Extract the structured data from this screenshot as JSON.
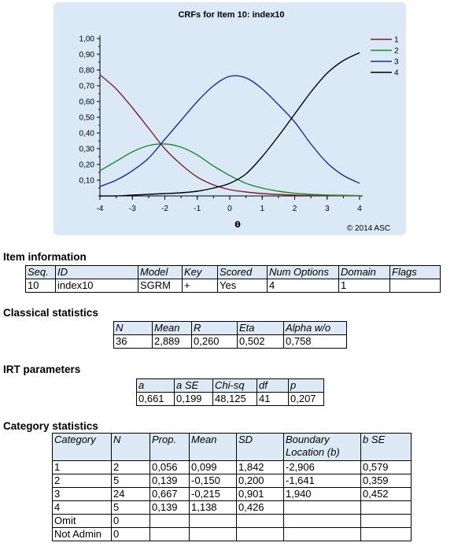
{
  "chart": {
    "copyright": "© 2014 ASC",
    "colors": {
      "1": "#7a1f2a",
      "2": "#1a8c2a",
      "3": "#1c2a9c",
      "4": "#000000"
    }
  },
  "chart_data": {
    "type": "line",
    "title": "CRFs for Item 10: index10",
    "xlabel": "θ",
    "ylabel": "",
    "xlim": [
      -4,
      4
    ],
    "ylim": [
      0,
      1
    ],
    "x_ticks": [
      "-4",
      "-3",
      "-2",
      "-1",
      "0",
      "1",
      "2",
      "3",
      "4"
    ],
    "y_ticks": [
      "0,10",
      "0,20",
      "0,30",
      "0,40",
      "0,50",
      "0,60",
      "0,70",
      "0,80",
      "0,90",
      "1,00"
    ],
    "x": [
      -4,
      -3.5,
      -3,
      -2.5,
      -2,
      -1.5,
      -1,
      -0.5,
      0,
      0.5,
      1,
      1.5,
      2,
      2.5,
      3,
      3.5,
      4
    ],
    "series": [
      {
        "name": "1",
        "values": [
          0.77,
          0.68,
          0.56,
          0.43,
          0.3,
          0.2,
          0.12,
          0.07,
          0.04,
          0.025,
          0.015,
          0.009,
          0.005,
          0.003,
          0.002,
          0.001,
          0.001
        ]
      },
      {
        "name": "2",
        "values": [
          0.16,
          0.22,
          0.28,
          0.32,
          0.33,
          0.31,
          0.26,
          0.19,
          0.13,
          0.08,
          0.05,
          0.03,
          0.017,
          0.01,
          0.006,
          0.004,
          0.002
        ]
      },
      {
        "name": "3",
        "values": [
          0.06,
          0.1,
          0.16,
          0.24,
          0.36,
          0.48,
          0.6,
          0.7,
          0.76,
          0.75,
          0.68,
          0.58,
          0.47,
          0.33,
          0.21,
          0.13,
          0.08
        ]
      },
      {
        "name": "4",
        "values": [
          0.0,
          0.0,
          0.005,
          0.01,
          0.015,
          0.02,
          0.03,
          0.05,
          0.08,
          0.14,
          0.25,
          0.38,
          0.52,
          0.66,
          0.78,
          0.86,
          0.91
        ]
      }
    ],
    "legend": "top-right",
    "grid": false
  },
  "sections": {
    "item_info": "Item information",
    "classical": "Classical statistics",
    "irt": "IRT parameters",
    "category": "Category statistics"
  },
  "item_info": {
    "headers": [
      "Seq.",
      "ID",
      "Model",
      "Key",
      "Scored",
      "Num Options",
      "Domain",
      "Flags"
    ],
    "row": [
      "10",
      "index10",
      "SGRM",
      "+",
      "Yes",
      "4",
      "1",
      ""
    ]
  },
  "classical": {
    "headers": [
      "N",
      "Mean",
      "R",
      "Eta",
      "Alpha w/o"
    ],
    "row": [
      "36",
      "2,889",
      "0,260",
      "0,502",
      "0,758"
    ]
  },
  "irt": {
    "headers": [
      "a",
      "a SE",
      "Chi-sq",
      "df",
      "p"
    ],
    "row": [
      "0,661",
      "0,199",
      "48,125",
      "41",
      "0,207"
    ]
  },
  "category": {
    "headers": [
      "Category",
      "N",
      "Prop.",
      "Mean",
      "SD",
      "Boundary Location (b)",
      "b SE"
    ],
    "rows": [
      [
        "1",
        "2",
        "0,056",
        "0,099",
        "1,842",
        "-2,906",
        "0,579"
      ],
      [
        "2",
        "5",
        "0,139",
        "-0,150",
        "0,200",
        "-1,641",
        "0,359"
      ],
      [
        "3",
        "24",
        "0,667",
        "-0,215",
        "0,901",
        "1,940",
        "0,452"
      ],
      [
        "4",
        "5",
        "0,139",
        "1,138",
        "0,426",
        "",
        ""
      ],
      [
        "Omit",
        "0",
        "",
        "",
        "",
        "",
        ""
      ],
      [
        "Not Admin",
        "0",
        "",
        "",
        "",
        "",
        ""
      ]
    ]
  }
}
